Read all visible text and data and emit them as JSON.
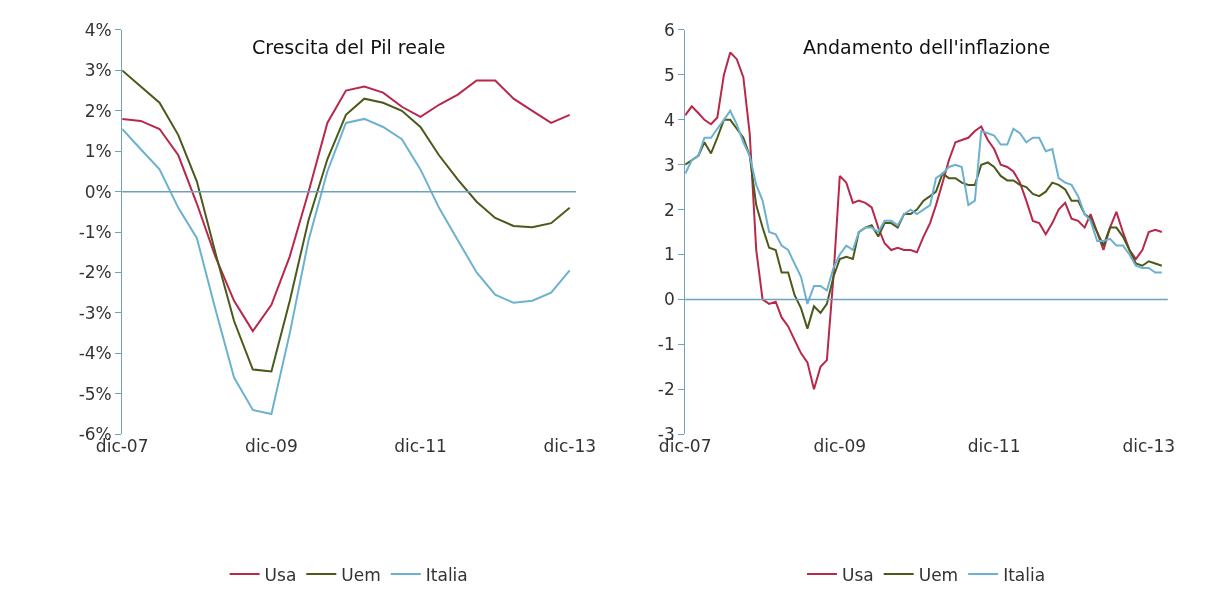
{
  "chart_data": [
    {
      "type": "line",
      "title": "Crescita del Pil reale",
      "legend": "bottom",
      "x": [
        "2007-12",
        "2008-03",
        "2008-06",
        "2008-09",
        "2008-12",
        "2009-03",
        "2009-06",
        "2009-09",
        "2009-12",
        "2010-03",
        "2010-06",
        "2010-09",
        "2010-12",
        "2011-03",
        "2011-06",
        "2011-09",
        "2011-12",
        "2012-03",
        "2012-06",
        "2012-09",
        "2012-12",
        "2013-03",
        "2013-06",
        "2013-09",
        "2013-12"
      ],
      "xlim": [
        "2007-12",
        "2014-01"
      ],
      "xticks": [
        {
          "value": "2007-12",
          "label": "dic-07"
        },
        {
          "value": "2009-12",
          "label": "dic-09"
        },
        {
          "value": "2011-12",
          "label": "dic-11"
        },
        {
          "value": "2013-12",
          "label": "dic-13"
        }
      ],
      "ylim": [
        -6,
        4
      ],
      "yticks": [
        {
          "value": -6,
          "label": "-6%"
        },
        {
          "value": -5,
          "label": "-5%"
        },
        {
          "value": -4,
          "label": "-4%"
        },
        {
          "value": -3,
          "label": "-3%"
        },
        {
          "value": -2,
          "label": "-2%"
        },
        {
          "value": -1,
          "label": "-1%"
        },
        {
          "value": 0,
          "label": "0%"
        },
        {
          "value": 1,
          "label": "1%"
        },
        {
          "value": 2,
          "label": "2%"
        },
        {
          "value": 3,
          "label": "3%"
        },
        {
          "value": 4,
          "label": "4%"
        }
      ],
      "ref_lines": [
        {
          "axis": "y",
          "value": 0,
          "color": "#6fa3bd"
        }
      ],
      "series": [
        {
          "name": "Usa",
          "color": "#b8284a",
          "values": [
            1.8,
            1.75,
            1.55,
            0.9,
            -0.3,
            -1.6,
            -2.7,
            -3.45,
            -2.8,
            -1.6,
            0.0,
            1.7,
            2.5,
            2.6,
            2.45,
            2.1,
            1.85,
            2.15,
            2.4,
            2.75,
            2.75,
            2.3,
            2.0,
            1.7,
            1.9
          ]
        },
        {
          "name": "Uem",
          "color": "#4a5a1a",
          "values": [
            3.0,
            2.6,
            2.2,
            1.4,
            0.25,
            -1.5,
            -3.2,
            -4.4,
            -4.45,
            -2.7,
            -0.7,
            0.8,
            1.9,
            2.3,
            2.2,
            2.0,
            1.6,
            0.9,
            0.3,
            -0.25,
            -0.65,
            -0.85,
            -0.88,
            -0.78,
            -0.4
          ]
        },
        {
          "name": "Italia",
          "color": "#6cb2cf",
          "values": [
            1.55,
            1.05,
            0.55,
            -0.4,
            -1.15,
            -2.9,
            -4.6,
            -5.4,
            -5.5,
            -3.5,
            -1.2,
            0.5,
            1.7,
            1.8,
            1.6,
            1.3,
            0.55,
            -0.4,
            -1.2,
            -2.0,
            -2.55,
            -2.75,
            -2.7,
            -2.5,
            -1.95
          ]
        }
      ]
    },
    {
      "type": "line",
      "title": "Andamento dell'inflazione",
      "legend": "bottom",
      "x": [
        "2007-12",
        "2008-01",
        "2008-02",
        "2008-03",
        "2008-04",
        "2008-05",
        "2008-06",
        "2008-07",
        "2008-08",
        "2008-09",
        "2008-10",
        "2008-11",
        "2008-12",
        "2009-01",
        "2009-02",
        "2009-03",
        "2009-04",
        "2009-05",
        "2009-06",
        "2009-07",
        "2009-08",
        "2009-09",
        "2009-10",
        "2009-11",
        "2009-12",
        "2010-01",
        "2010-02",
        "2010-03",
        "2010-04",
        "2010-05",
        "2010-06",
        "2010-07",
        "2010-08",
        "2010-09",
        "2010-10",
        "2010-11",
        "2010-12",
        "2011-01",
        "2011-02",
        "2011-03",
        "2011-04",
        "2011-05",
        "2011-06",
        "2011-07",
        "2011-08",
        "2011-09",
        "2011-10",
        "2011-11",
        "2011-12",
        "2012-01",
        "2012-02",
        "2012-03",
        "2012-04",
        "2012-05",
        "2012-06",
        "2012-07",
        "2012-08",
        "2012-09",
        "2012-10",
        "2012-11",
        "2012-12",
        "2013-01",
        "2013-02",
        "2013-03",
        "2013-04",
        "2013-05",
        "2013-06",
        "2013-07",
        "2013-08",
        "2013-09",
        "2013-10",
        "2013-11",
        "2013-12",
        "2014-01",
        "2014-02"
      ],
      "xlim": [
        "2007-12",
        "2014-03"
      ],
      "xticks": [
        {
          "value": "2007-12",
          "label": "dic-07"
        },
        {
          "value": "2009-12",
          "label": "dic-09"
        },
        {
          "value": "2011-12",
          "label": "dic-11"
        },
        {
          "value": "2013-12",
          "label": "dic-13"
        }
      ],
      "ylim": [
        -3,
        6
      ],
      "yticks": [
        -3,
        -2,
        -1,
        0,
        1,
        2,
        3,
        4,
        5,
        6
      ],
      "ref_lines": [
        {
          "axis": "y",
          "value": 0,
          "color": "#6fa3bd"
        }
      ],
      "series": [
        {
          "name": "Usa",
          "color": "#b8284a",
          "values": [
            4.1,
            4.3,
            4.15,
            4.0,
            3.9,
            4.05,
            5.0,
            5.5,
            5.35,
            4.95,
            3.7,
            1.1,
            0.0,
            -0.1,
            -0.05,
            -0.4,
            -0.6,
            -0.9,
            -1.2,
            -1.4,
            -2.0,
            -1.5,
            -1.35,
            0.5,
            2.75,
            2.6,
            2.15,
            2.2,
            2.15,
            2.05,
            1.6,
            1.25,
            1.1,
            1.15,
            1.1,
            1.1,
            1.05,
            1.4,
            1.7,
            2.1,
            2.6,
            3.1,
            3.5,
            3.55,
            3.6,
            3.75,
            3.85,
            3.55,
            3.35,
            3.0,
            2.95,
            2.85,
            2.6,
            2.2,
            1.75,
            1.7,
            1.45,
            1.7,
            2.0,
            2.15,
            1.8,
            1.75,
            1.6,
            1.9,
            1.5,
            1.1,
            1.6,
            1.95,
            1.5,
            1.1,
            0.9,
            1.1,
            1.5,
            1.55,
            1.5
          ]
        },
        {
          "name": "Uem",
          "color": "#4a5a1a",
          "values": [
            3.0,
            3.1,
            3.2,
            3.5,
            3.25,
            3.6,
            4.0,
            4.0,
            3.8,
            3.6,
            3.2,
            2.1,
            1.6,
            1.15,
            1.1,
            0.6,
            0.6,
            0.1,
            -0.2,
            -0.65,
            -0.15,
            -0.3,
            -0.1,
            0.5,
            0.9,
            0.95,
            0.9,
            1.5,
            1.6,
            1.65,
            1.4,
            1.7,
            1.7,
            1.6,
            1.9,
            1.9,
            2.0,
            2.2,
            2.3,
            2.4,
            2.8,
            2.7,
            2.7,
            2.6,
            2.55,
            2.55,
            3.0,
            3.05,
            2.95,
            2.75,
            2.65,
            2.65,
            2.55,
            2.5,
            2.35,
            2.3,
            2.4,
            2.6,
            2.55,
            2.45,
            2.2,
            2.2,
            1.9,
            1.8,
            1.5,
            1.2,
            1.6,
            1.6,
            1.4,
            1.1,
            0.8,
            0.75,
            0.85,
            0.8,
            0.75
          ]
        },
        {
          "name": "Italia",
          "color": "#6cb2cf",
          "values": [
            2.8,
            3.1,
            3.2,
            3.6,
            3.6,
            3.8,
            4.0,
            4.2,
            3.9,
            3.5,
            3.2,
            2.55,
            2.2,
            1.5,
            1.45,
            1.2,
            1.1,
            0.8,
            0.5,
            -0.1,
            0.3,
            0.3,
            0.2,
            0.7,
            1.0,
            1.2,
            1.1,
            1.5,
            1.6,
            1.6,
            1.5,
            1.75,
            1.75,
            1.65,
            1.9,
            2.0,
            1.9,
            2.0,
            2.1,
            2.7,
            2.8,
            2.95,
            3.0,
            2.95,
            2.1,
            2.2,
            3.75,
            3.7,
            3.65,
            3.45,
            3.45,
            3.8,
            3.7,
            3.5,
            3.6,
            3.6,
            3.3,
            3.35,
            2.7,
            2.6,
            2.55,
            2.3,
            1.9,
            1.75,
            1.3,
            1.3,
            1.35,
            1.2,
            1.2,
            1.0,
            0.75,
            0.7,
            0.7,
            0.6,
            0.6
          ]
        }
      ]
    }
  ]
}
